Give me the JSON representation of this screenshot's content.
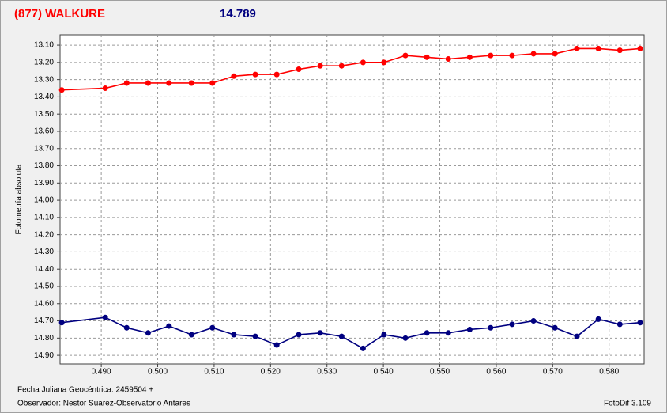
{
  "chart_data": {
    "type": "line",
    "title": "(877) WALKURE",
    "subtitle": "14.789",
    "title_color": "#ff0000",
    "subtitle_color": "#000080",
    "y_label": "Fotometría absoluta",
    "annotations": [
      "Fecha Juliana Geocéntrica: 2459504 +",
      "Observador: Nestor Suarez-Observatorio Antares",
      "FotoDif 3.109"
    ],
    "x": [
      0.483,
      0.4907,
      0.4945,
      0.4983,
      0.502,
      0.506,
      0.5097,
      0.5135,
      0.5173,
      0.5211,
      0.525,
      0.5288,
      0.5326,
      0.5364,
      0.5401,
      0.5439,
      0.5477,
      0.5515,
      0.5553,
      0.559,
      0.5628,
      0.5666,
      0.5704,
      0.5743,
      0.5781,
      0.5819,
      0.5855
    ],
    "series": [
      {
        "color": "#ff0000",
        "values": [
          13.36,
          13.35,
          13.32,
          13.32,
          13.32,
          13.32,
          13.32,
          13.28,
          13.27,
          13.27,
          13.24,
          13.22,
          13.22,
          13.2,
          13.2,
          13.16,
          13.17,
          13.18,
          13.17,
          13.16,
          13.16,
          13.15,
          13.15,
          13.12,
          13.12,
          13.13,
          13.12
        ]
      },
      {
        "color": "#000080",
        "values": [
          14.71,
          14.68,
          14.74,
          14.77,
          14.73,
          14.78,
          14.74,
          14.78,
          14.79,
          14.84,
          14.78,
          14.77,
          14.79,
          14.86,
          14.78,
          14.8,
          14.77,
          14.77,
          14.75,
          14.74,
          14.72,
          14.7,
          14.74,
          14.79,
          14.69,
          14.72,
          14.71
        ]
      }
    ],
    "xlim": [
      0.4827,
      0.5862
    ],
    "xticks": [
      {
        "value": 0.49,
        "label": "0.490"
      },
      {
        "value": 0.5,
        "label": "0.500"
      },
      {
        "value": 0.51,
        "label": "0.510"
      },
      {
        "value": 0.52,
        "label": "0.520"
      },
      {
        "value": 0.53,
        "label": "0.530"
      },
      {
        "value": 0.54,
        "label": "0.540"
      },
      {
        "value": 0.55,
        "label": "0.550"
      },
      {
        "value": 0.56,
        "label": "0.560"
      },
      {
        "value": 0.57,
        "label": "0.570"
      },
      {
        "value": 0.58,
        "label": "0.580"
      }
    ],
    "ylim": [
      13.04,
      14.95
    ],
    "y_reversed": true,
    "yticks": [
      {
        "value": 13.1,
        "label": "13.10"
      },
      {
        "value": 13.2,
        "label": "13.20"
      },
      {
        "value": 13.3,
        "label": "13.30"
      },
      {
        "value": 13.4,
        "label": "13.40"
      },
      {
        "value": 13.5,
        "label": "13.50"
      },
      {
        "value": 13.6,
        "label": "13.60"
      },
      {
        "value": 13.7,
        "label": "13.70"
      },
      {
        "value": 13.8,
        "label": "13.80"
      },
      {
        "value": 13.9,
        "label": "13.90"
      },
      {
        "value": 14.0,
        "label": "14.00"
      },
      {
        "value": 14.1,
        "label": "14.10"
      },
      {
        "value": 14.2,
        "label": "14.20"
      },
      {
        "value": 14.3,
        "label": "14.30"
      },
      {
        "value": 14.4,
        "label": "14.40"
      },
      {
        "value": 14.5,
        "label": "14.50"
      },
      {
        "value": 14.6,
        "label": "14.60"
      },
      {
        "value": 14.7,
        "label": "14.70"
      },
      {
        "value": 14.8,
        "label": "14.80"
      },
      {
        "value": 14.9,
        "label": "14.90"
      }
    ],
    "grid": true
  }
}
